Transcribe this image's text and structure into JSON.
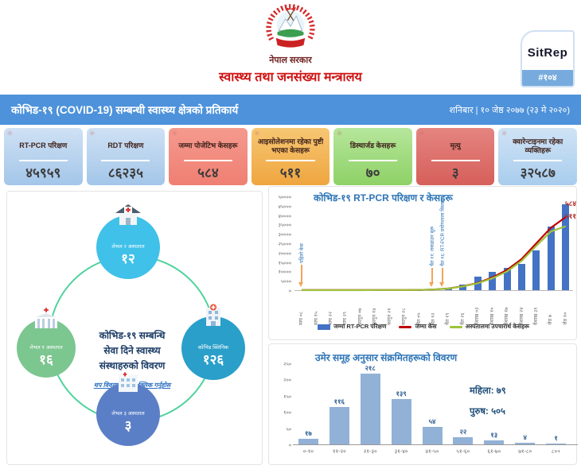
{
  "digit_glyphs": "०१२३४५६७८९",
  "header": {
    "govt": "नेपाल सरकार",
    "ministry": "स्वास्थ्य तथा जनसंख्या मन्त्रालय",
    "sitrep_label": "SitRep",
    "sitrep_number": "#१०४"
  },
  "title_bar": {
    "title": "कोभिड-१९ (COVID-19) सम्बन्धी स्वास्थ्य क्षेत्रको प्रतिकार्य",
    "date": "शनिबार | १० जेष्ठ २०७७ (२३ मे २०२०)",
    "bg_color": "#4d92da"
  },
  "stat_cards": [
    {
      "label": "RT-PCR परिक्षण",
      "value": 45959,
      "color_top": "#cfe1f4",
      "color_bottom": "#a3c6e9"
    },
    {
      "label": "RDT परिक्षण",
      "value": 86235,
      "color_top": "#cfe1f4",
      "color_bottom": "#a3c6e9"
    },
    {
      "label": "जम्मा पोजेटिभ केसहरू",
      "value": 584,
      "color_top": "#f59a8e",
      "color_bottom": "#ef7f72"
    },
    {
      "label": "आइसोलेशनमा रहेका पुष्टी भएका केसहरू",
      "value": 511,
      "color_top": "#f7c773",
      "color_bottom": "#efa53f"
    },
    {
      "label": "डिस्चार्जड केसहरू",
      "value": 70,
      "color_top": "#b6e69b",
      "color_bottom": "#8ed166"
    },
    {
      "label": "मृत्यु",
      "value": 3,
      "color_top": "#e58480",
      "color_bottom": "#d65f5a"
    },
    {
      "label": "क्वारेन्टाइनमा रहेका व्यक्तिहरू",
      "value": 32587,
      "color_top": "#cfe3f5",
      "color_bottom": "#a9cdee"
    }
  ],
  "facility_panel": {
    "center_lines": [
      "कोभिड-१९ सम्बन्धि",
      "सेवा दिने स्वास्थ्य",
      "संस्थाहरुको विवरण"
    ],
    "link_text": "थप विवरणका यहाँ क्लिक गर्नुहोस",
    "nodes": [
      {
        "pos": "top",
        "label": "लेभल २ अस्पताल",
        "value": 12,
        "color": "#3fc1e9",
        "icon": "house-icon"
      },
      {
        "pos": "left",
        "label": "लेभल १ अस्पताल",
        "value": 16,
        "color": "#7cc690",
        "icon": "hospital-icon"
      },
      {
        "pos": "right",
        "label": "कोभिड क्लिनिक",
        "value": 126,
        "color": "#2a9fc9",
        "icon": "clinic-icon"
      },
      {
        "pos": "bottom",
        "label": "लेभल ३ अस्पताल",
        "value": 3,
        "color": "#5b7fc7",
        "icon": "building-icon"
      }
    ]
  },
  "chart_data": [
    {
      "type": "bar",
      "subtype": "combo-bar-line",
      "title": "कोभिड-१९ RT-PCR परिक्षण र केसहरू",
      "categories": [
        "माघ ०८",
        "माघ १५",
        "माघ २२",
        "माघ २९",
        "फागुन ०७",
        "फागुन १४",
        "फागुन २१",
        "फागुन २८",
        "चैत ०५",
        "चैत १२",
        "चैत १९",
        "चैत २६",
        "वैशाख ०३",
        "वैशाख १०",
        "वैशाख १७",
        "वैशाख २४",
        "वैशाख ३१",
        "जेठ ७",
        "जेठ १०"
      ],
      "ylim": [
        0,
        50000
      ],
      "ytick_step": 5000,
      "line_axis_max": 750,
      "grid": false,
      "legend_position": "bottom",
      "series": [
        {
          "name": "जम्मा RT-PCR परिक्षण",
          "type": "bar",
          "color": "#4472c4",
          "values": [
            0,
            0,
            0,
            0,
            0,
            0,
            0,
            0,
            200,
            500,
            1200,
            3000,
            7000,
            9700,
            11700,
            14000,
            21000,
            34000,
            45959
          ]
        },
        {
          "name": "जम्मा केस",
          "type": "line",
          "color": "#c00000",
          "end_label": 584,
          "values": [
            1,
            1,
            1,
            1,
            1,
            1,
            1,
            1,
            2,
            5,
            14,
            31,
            58,
            102,
            162,
            250,
            375,
            500,
            584
          ]
        },
        {
          "name": "अस्पतालमा उपचारार्थ केसहरू",
          "type": "line",
          "color": "#9dc33b",
          "end_label": 511,
          "values": [
            0,
            0,
            0,
            0,
            0,
            1,
            1,
            1,
            2,
            5,
            13,
            30,
            55,
            95,
            150,
            235,
            355,
            470,
            511
          ]
        }
      ],
      "annotations": [
        {
          "text": "पहिलो केस",
          "col": 0
        },
        {
          "text": "चैत ११: लकडाउन सुरू",
          "col": 8.9
        },
        {
          "text": "चैत १६: RT-PCR प्रयोगशाला विस्तार",
          "col": 9.6
        }
      ]
    },
    {
      "type": "bar",
      "title": "उमेर समूह अनुसार संक्रमितहरूको विवरण",
      "categories": [
        "०-१०",
        "११-२०",
        "२१-३०",
        "३१-४०",
        "४१-५०",
        "५१-६०",
        "६१-७०",
        "७१-८०",
        "८०+"
      ],
      "values": [
        17,
        116,
        218,
        139,
        54,
        22,
        13,
        4,
        1
      ],
      "bar_color": "#92b1d6",
      "ylim": [
        0,
        250
      ],
      "ytick_step": 50,
      "grid": false,
      "side_stats": [
        {
          "label": "महिला:",
          "value": 79
        },
        {
          "label": "पुरुष:",
          "value": 505
        }
      ]
    }
  ]
}
